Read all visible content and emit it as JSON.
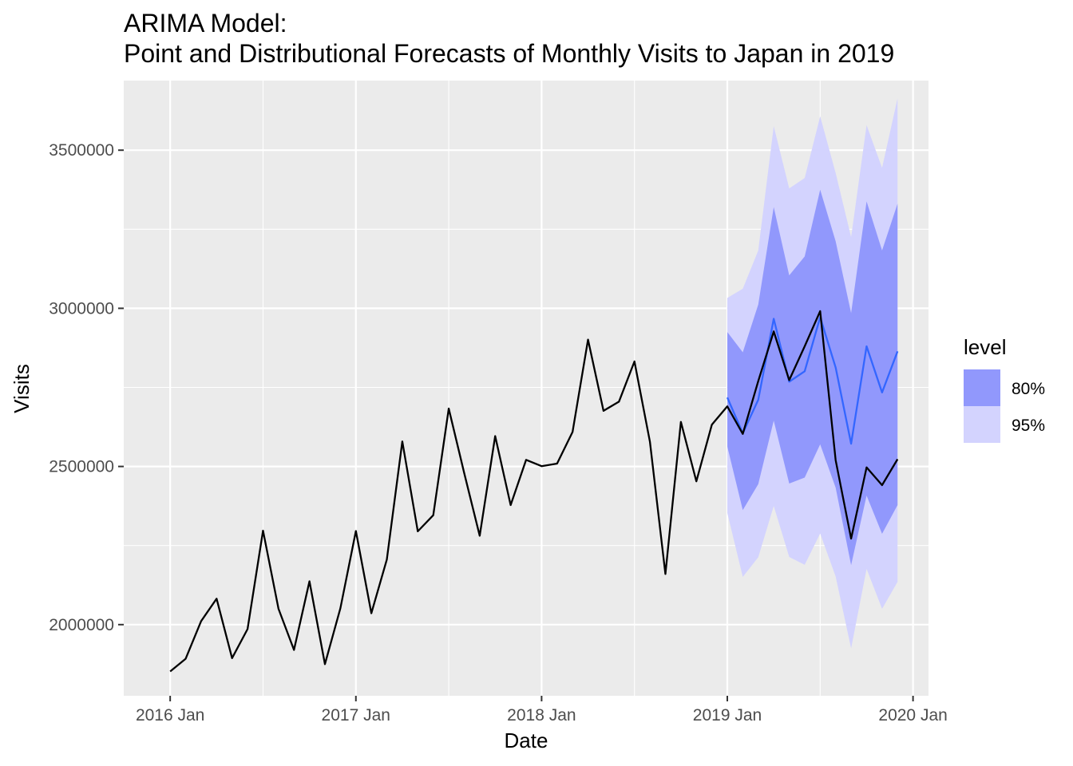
{
  "chart_data": {
    "type": "line",
    "title_line1": "ARIMA Model:",
    "title_line2": "Point and Distributional Forecasts of Monthly Visits to Japan in 2019",
    "xlabel": "Date",
    "ylabel": "Visits",
    "x_range": [
      "2015-10",
      "2020-02"
    ],
    "ylim": [
      1775000,
      3720000
    ],
    "y_ticks": [
      {
        "value": 2000000,
        "label": "2000000"
      },
      {
        "value": 2500000,
        "label": "2500000"
      },
      {
        "value": 3000000,
        "label": "3000000"
      },
      {
        "value": 3500000,
        "label": "3500000"
      }
    ],
    "x_ticks": [
      {
        "value": "2016-01",
        "label": "2016 Jan"
      },
      {
        "value": "2017-01",
        "label": "2017 Jan"
      },
      {
        "value": "2018-01",
        "label": "2018 Jan"
      },
      {
        "value": "2019-01",
        "label": "2019 Jan"
      },
      {
        "value": "2020-01",
        "label": "2020 Jan"
      }
    ],
    "grid": true,
    "background_color": "#ebebeb",
    "grid_color": "#ffffff",
    "actual": {
      "color": "#000000",
      "dates": [
        "2016-01",
        "2016-02",
        "2016-03",
        "2016-04",
        "2016-05",
        "2016-06",
        "2016-07",
        "2016-08",
        "2016-09",
        "2016-10",
        "2016-11",
        "2016-12",
        "2017-01",
        "2017-02",
        "2017-03",
        "2017-04",
        "2017-05",
        "2017-06",
        "2017-07",
        "2017-08",
        "2017-09",
        "2017-10",
        "2017-11",
        "2017-12",
        "2018-01",
        "2018-02",
        "2018-03",
        "2018-04",
        "2018-05",
        "2018-06",
        "2018-07",
        "2018-08",
        "2018-09",
        "2018-10",
        "2018-11",
        "2018-12",
        "2019-01",
        "2019-02",
        "2019-03",
        "2019-04",
        "2019-05",
        "2019-06",
        "2019-07",
        "2019-08",
        "2019-09",
        "2019-10",
        "2019-11",
        "2019-12"
      ],
      "values": [
        1852000,
        1892000,
        2011000,
        2082000,
        1894000,
        1986000,
        2297000,
        2050000,
        1920000,
        2137000,
        1875000,
        2052000,
        2296000,
        2036000,
        2206000,
        2579000,
        2295000,
        2346000,
        2683000,
        2479000,
        2281000,
        2596000,
        2378000,
        2521000,
        2501000,
        2509000,
        2609000,
        2901000,
        2676000,
        2705000,
        2832000,
        2578000,
        2160000,
        2641000,
        2453000,
        2632000,
        2690000,
        2603000,
        2770000,
        2927000,
        2773000,
        2880000,
        2991000,
        2520000,
        2272000,
        2497000,
        2441000,
        2523000
      ]
    },
    "forecast": {
      "color": "#3366ff",
      "dates": [
        "2019-01",
        "2019-02",
        "2019-03",
        "2019-04",
        "2019-05",
        "2019-06",
        "2019-07",
        "2019-08",
        "2019-09",
        "2019-10",
        "2019-11",
        "2019-12"
      ],
      "values": [
        2718000,
        2605000,
        2711000,
        2967000,
        2768000,
        2801000,
        2972000,
        2813000,
        2572000,
        2880000,
        2734000,
        2864000
      ],
      "lower80": [
        2563000,
        2362000,
        2444000,
        2645000,
        2446000,
        2465000,
        2570000,
        2433000,
        2188000,
        2408000,
        2287000,
        2378000
      ],
      "upper80": [
        2925000,
        2861000,
        3012000,
        3320000,
        3104000,
        3164000,
        3375000,
        3212000,
        2985000,
        3338000,
        3183000,
        3331000
      ],
      "lower95": [
        2353000,
        2151000,
        2213000,
        2375000,
        2214000,
        2189000,
        2288000,
        2152000,
        1925000,
        2176000,
        2050000,
        2135000
      ],
      "upper95": [
        3033000,
        3062000,
        3183000,
        3576000,
        3379000,
        3412000,
        3607000,
        3428000,
        3225000,
        3579000,
        3444000,
        3664000
      ]
    },
    "legend": {
      "title": "level",
      "position": "right",
      "entries": [
        {
          "label": "80%",
          "color": "#9198fc"
        },
        {
          "label": "95%",
          "color": "#d3d3fe"
        }
      ]
    }
  }
}
